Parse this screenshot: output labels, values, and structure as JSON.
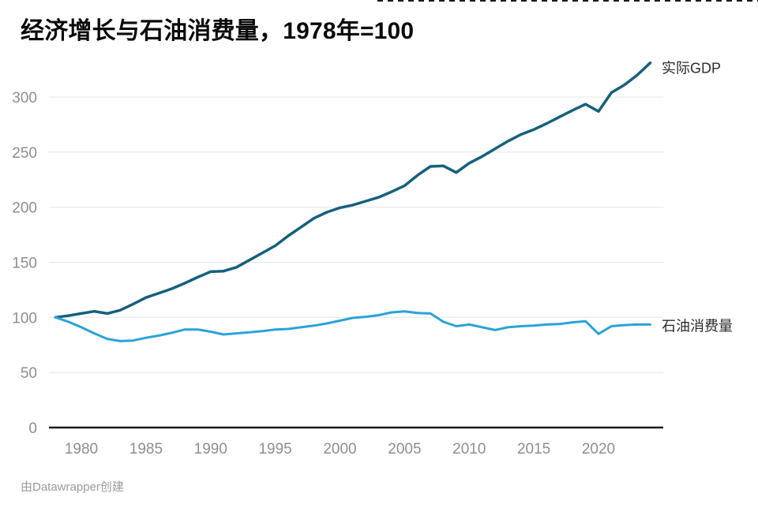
{
  "header": {
    "title": "经济增长与石油消费量，1978年=100"
  },
  "footer": {
    "attribution": "由Datawrapper创建"
  },
  "colors": {
    "gdp_line": "#15607d",
    "oil_line": "#2aa3d8",
    "axis": "#1a1a1a",
    "grid": "#e5e5e5",
    "tick_text": "#8e8e8e",
    "label_text": "#2b2b2b",
    "footer_text": "#9b9b9b",
    "background": "#ffffff"
  },
  "chart_data": {
    "type": "line",
    "title": "经济增长与石油消费量，1978年=100",
    "xlabel": "",
    "ylabel": "",
    "xlim": [
      1978,
      2024
    ],
    "ylim": [
      0,
      340
    ],
    "xticks": [
      1980,
      1985,
      1990,
      1995,
      2000,
      2005,
      2010,
      2015,
      2020
    ],
    "yticks": [
      0,
      50,
      100,
      150,
      200,
      250,
      300
    ],
    "grid": "horizontal-light",
    "legend_position": "line-end-labels-right",
    "x": [
      1978,
      1979,
      1980,
      1981,
      1982,
      1983,
      1984,
      1985,
      1986,
      1987,
      1988,
      1989,
      1990,
      1991,
      1992,
      1993,
      1994,
      1995,
      1996,
      1997,
      1998,
      1999,
      2000,
      2001,
      2002,
      2003,
      2004,
      2005,
      2006,
      2007,
      2008,
      2009,
      2010,
      2011,
      2012,
      2013,
      2014,
      2015,
      2016,
      2017,
      2018,
      2019,
      2020,
      2021,
      2022,
      2023,
      2024
    ],
    "series": [
      {
        "name": "实际GDP",
        "color": "#15607d",
        "values": [
          100,
          101.5,
          103.5,
          105.5,
          103.5,
          106.5,
          112,
          118,
          122,
          126,
          131,
          136.5,
          141.5,
          142,
          145.5,
          152,
          158.5,
          165,
          174,
          182,
          190,
          195.5,
          199.5,
          202,
          205.5,
          209,
          214,
          219.5,
          229,
          237,
          237.5,
          231.5,
          240,
          246,
          253,
          260,
          266,
          270.5,
          276,
          282,
          288,
          293.5,
          287,
          304,
          311,
          320,
          331
        ]
      },
      {
        "name": "石油消费量",
        "color": "#2aa3d8",
        "values": [
          100,
          96,
          91,
          85.5,
          80.5,
          78.5,
          79,
          81.5,
          83.5,
          86,
          89,
          89,
          87,
          84.5,
          85.5,
          86.5,
          87.5,
          89,
          89.5,
          91,
          92.5,
          94.5,
          97,
          99.5,
          100.5,
          102,
          104.5,
          105.5,
          104,
          103.5,
          96,
          92,
          93.5,
          91,
          88.5,
          91,
          92,
          92.5,
          93.5,
          94,
          95.5,
          96.5,
          85,
          92,
          93,
          93.5,
          93.5
        ]
      }
    ]
  }
}
